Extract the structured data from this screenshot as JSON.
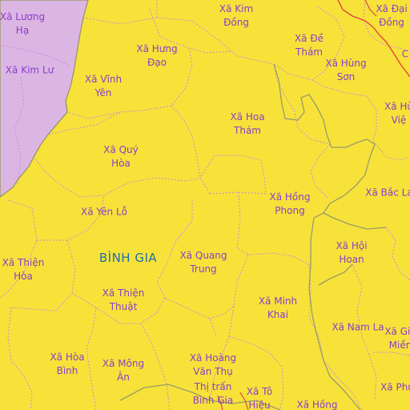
{
  "map": {
    "colors": {
      "land": "#f7e23a",
      "neighbor_district": "#dcb6e3",
      "commune_border": "#c98ad8",
      "district_border": "#9a9a6a",
      "road": "#e2473c",
      "commune_label": "#8a3ec9",
      "district_label": "#1f6fa8"
    },
    "district_label": "BÌNH GIA",
    "communes": [
      {
        "id": "luong-ha",
        "text": "Xã Lương\nHạ"
      },
      {
        "id": "kim-dong",
        "text": "Xã Kim\nĐồng"
      },
      {
        "id": "dai-dong",
        "text": "Xã Đại\nĐồng"
      },
      {
        "id": "de-tham",
        "text": "Xã Đề\nThám"
      },
      {
        "id": "hung-dao",
        "text": "Xã Hưng\nĐạo"
      },
      {
        "id": "kim-lu",
        "text": "Xã Kim Lư"
      },
      {
        "id": "hung-son",
        "text": "Xã Hùng\nSơn"
      },
      {
        "id": "vinh-yen",
        "text": "Xã Vĩnh\nYên"
      },
      {
        "id": "hung-viet",
        "text": "Xã Hù\nViệ"
      },
      {
        "id": "hoa-tham",
        "text": "Xã Hoa\nThám"
      },
      {
        "id": "quy-hoa",
        "text": "Xã Quý\nHòa"
      },
      {
        "id": "bac-la",
        "text": "Xã Bắc La"
      },
      {
        "id": "hong-phong",
        "text": "Xã Hồng\nPhong"
      },
      {
        "id": "yen-lo",
        "text": "Xã Yên Lỗ"
      },
      {
        "id": "hoi-hoan",
        "text": "Xã Hội\nHoan"
      },
      {
        "id": "thien-hoa",
        "text": "Xã Thiện\nHòa"
      },
      {
        "id": "quang-trung",
        "text": "Xã Quang\nTrung"
      },
      {
        "id": "thien-thuat",
        "text": "Xã Thiện\nThuật"
      },
      {
        "id": "minh-khai",
        "text": "Xã Minh\nKhai"
      },
      {
        "id": "nam-la",
        "text": "Xã Nam La"
      },
      {
        "id": "gia-mien",
        "text": "Xã Gia\nMiền"
      },
      {
        "id": "hoa-binh",
        "text": "Xã Hòa\nBình"
      },
      {
        "id": "mong-an",
        "text": "Xã Mông\nÂn"
      },
      {
        "id": "hoang-van-thu",
        "text": "Xã Hoàng\nVăn Thụ"
      },
      {
        "id": "thi-tran-binh-gia",
        "text": "Thị trấn\nBình Gia"
      },
      {
        "id": "to-hieu",
        "text": "Xã Tô\nHiệu"
      },
      {
        "id": "hong",
        "text": "Xã Hồng"
      },
      {
        "id": "phu",
        "text": "Xã Phú"
      },
      {
        "id": "c-edge",
        "text": "C"
      }
    ]
  }
}
